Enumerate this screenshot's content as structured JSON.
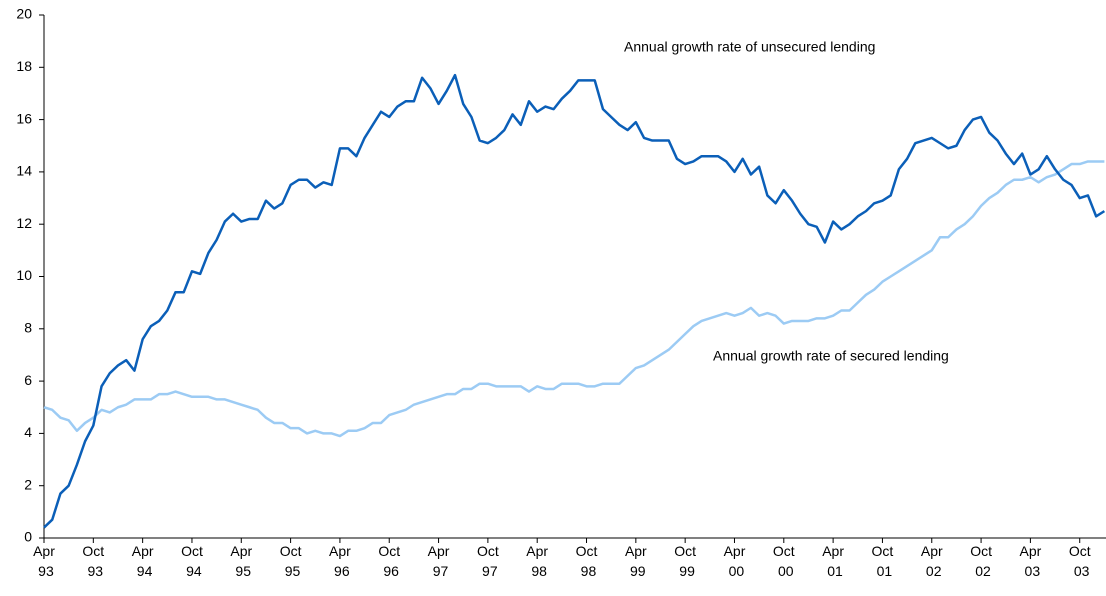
{
  "chart_data": {
    "type": "line",
    "annotations": [
      "Annual growth rate of unsecured lending",
      "Annual growth rate of secured lending"
    ],
    "categories": [
      "Apr 93",
      null,
      null,
      null,
      null,
      null,
      "Oct 93",
      null,
      null,
      null,
      null,
      null,
      "Apr 94",
      null,
      null,
      null,
      null,
      null,
      "Oct 94",
      null,
      null,
      null,
      null,
      null,
      "Apr 95",
      null,
      null,
      null,
      null,
      null,
      "Oct 95",
      null,
      null,
      null,
      null,
      null,
      "Apr 96",
      null,
      null,
      null,
      null,
      null,
      "Oct 96",
      null,
      null,
      null,
      null,
      null,
      "Apr 97",
      null,
      null,
      null,
      null,
      null,
      "Oct 97",
      null,
      null,
      null,
      null,
      null,
      "Apr 98",
      null,
      null,
      null,
      null,
      null,
      "Oct 98",
      null,
      null,
      null,
      null,
      null,
      "Apr 99",
      null,
      null,
      null,
      null,
      null,
      "Oct 99",
      null,
      null,
      null,
      null,
      null,
      "Apr 00",
      null,
      null,
      null,
      null,
      null,
      "Oct 00",
      null,
      null,
      null,
      null,
      null,
      "Apr 01",
      null,
      null,
      null,
      null,
      null,
      "Oct 01",
      null,
      null,
      null,
      null,
      null,
      "Apr 02",
      null,
      null,
      null,
      null,
      null,
      "Oct 02",
      null,
      null,
      null,
      null,
      null,
      "Apr 03",
      null,
      null,
      null,
      null,
      null,
      "Oct 03",
      null,
      null,
      null
    ],
    "series": [
      {
        "name": "Annual growth rate of unsecured lending",
        "color": "#0b5fb8",
        "values": [
          0.4,
          0.7,
          1.7,
          2.0,
          2.8,
          3.7,
          4.3,
          5.8,
          6.3,
          6.6,
          6.8,
          6.4,
          7.6,
          8.1,
          8.3,
          8.7,
          9.4,
          9.4,
          10.2,
          10.1,
          10.9,
          11.4,
          12.1,
          12.4,
          12.1,
          12.2,
          12.2,
          12.9,
          12.6,
          12.8,
          13.5,
          13.7,
          13.7,
          13.4,
          13.6,
          13.5,
          14.9,
          14.9,
          14.6,
          15.3,
          15.8,
          16.3,
          16.1,
          16.5,
          16.7,
          16.7,
          17.6,
          17.2,
          16.6,
          17.1,
          17.7,
          16.6,
          16.1,
          15.2,
          15.1,
          15.3,
          15.6,
          16.2,
          15.8,
          16.7,
          16.3,
          16.5,
          16.4,
          16.8,
          17.1,
          17.5,
          17.5,
          17.5,
          16.4,
          16.1,
          15.8,
          15.6,
          15.9,
          15.3,
          15.2,
          15.2,
          15.2,
          14.5,
          14.3,
          14.4,
          14.6,
          14.6,
          14.6,
          14.4,
          14.0,
          14.5,
          13.9,
          14.2,
          13.1,
          12.8,
          13.3,
          12.9,
          12.4,
          12.0,
          11.9,
          11.3,
          12.1,
          11.8,
          12.0,
          12.3,
          12.5,
          12.8,
          12.9,
          13.1,
          14.1,
          14.5,
          15.1,
          15.2,
          15.3,
          15.1,
          14.9,
          15.0,
          15.6,
          16.0,
          16.1,
          15.5,
          15.2,
          14.7,
          14.3,
          14.7,
          13.9,
          14.1,
          14.6,
          14.1,
          13.7,
          13.5,
          13.0,
          13.1,
          12.3,
          12.5
        ]
      },
      {
        "name": "Annual growth rate of secured lending",
        "color": "#9ccbf4",
        "values": [
          5.0,
          4.9,
          4.6,
          4.5,
          4.1,
          4.4,
          4.6,
          4.9,
          4.8,
          5.0,
          5.1,
          5.3,
          5.3,
          5.3,
          5.5,
          5.5,
          5.6,
          5.5,
          5.4,
          5.4,
          5.4,
          5.3,
          5.3,
          5.2,
          5.1,
          5.0,
          4.9,
          4.6,
          4.4,
          4.4,
          4.2,
          4.2,
          4.0,
          4.1,
          4.0,
          4.0,
          3.9,
          4.1,
          4.1,
          4.2,
          4.4,
          4.4,
          4.7,
          4.8,
          4.9,
          5.1,
          5.2,
          5.3,
          5.4,
          5.5,
          5.5,
          5.7,
          5.7,
          5.9,
          5.9,
          5.8,
          5.8,
          5.8,
          5.8,
          5.6,
          5.8,
          5.7,
          5.7,
          5.9,
          5.9,
          5.9,
          5.8,
          5.8,
          5.9,
          5.9,
          5.9,
          6.2,
          6.5,
          6.6,
          6.8,
          7.0,
          7.2,
          7.5,
          7.8,
          8.1,
          8.3,
          8.4,
          8.5,
          8.6,
          8.5,
          8.6,
          8.8,
          8.5,
          8.6,
          8.5,
          8.2,
          8.3,
          8.3,
          8.3,
          8.4,
          8.4,
          8.5,
          8.7,
          8.7,
          9.0,
          9.3,
          9.5,
          9.8,
          10.0,
          10.2,
          10.4,
          10.6,
          10.8,
          11.0,
          11.5,
          11.5,
          11.8,
          12.0,
          12.3,
          12.7,
          13.0,
          13.2,
          13.5,
          13.7,
          13.7,
          13.8,
          13.6,
          13.8,
          13.9,
          14.1,
          14.3,
          14.3,
          14.4,
          14.4,
          14.4
        ]
      }
    ],
    "ylim": [
      0,
      20
    ],
    "yticks": [
      0,
      2,
      4,
      6,
      8,
      10,
      12,
      14,
      16,
      18,
      20
    ],
    "grid": false
  }
}
